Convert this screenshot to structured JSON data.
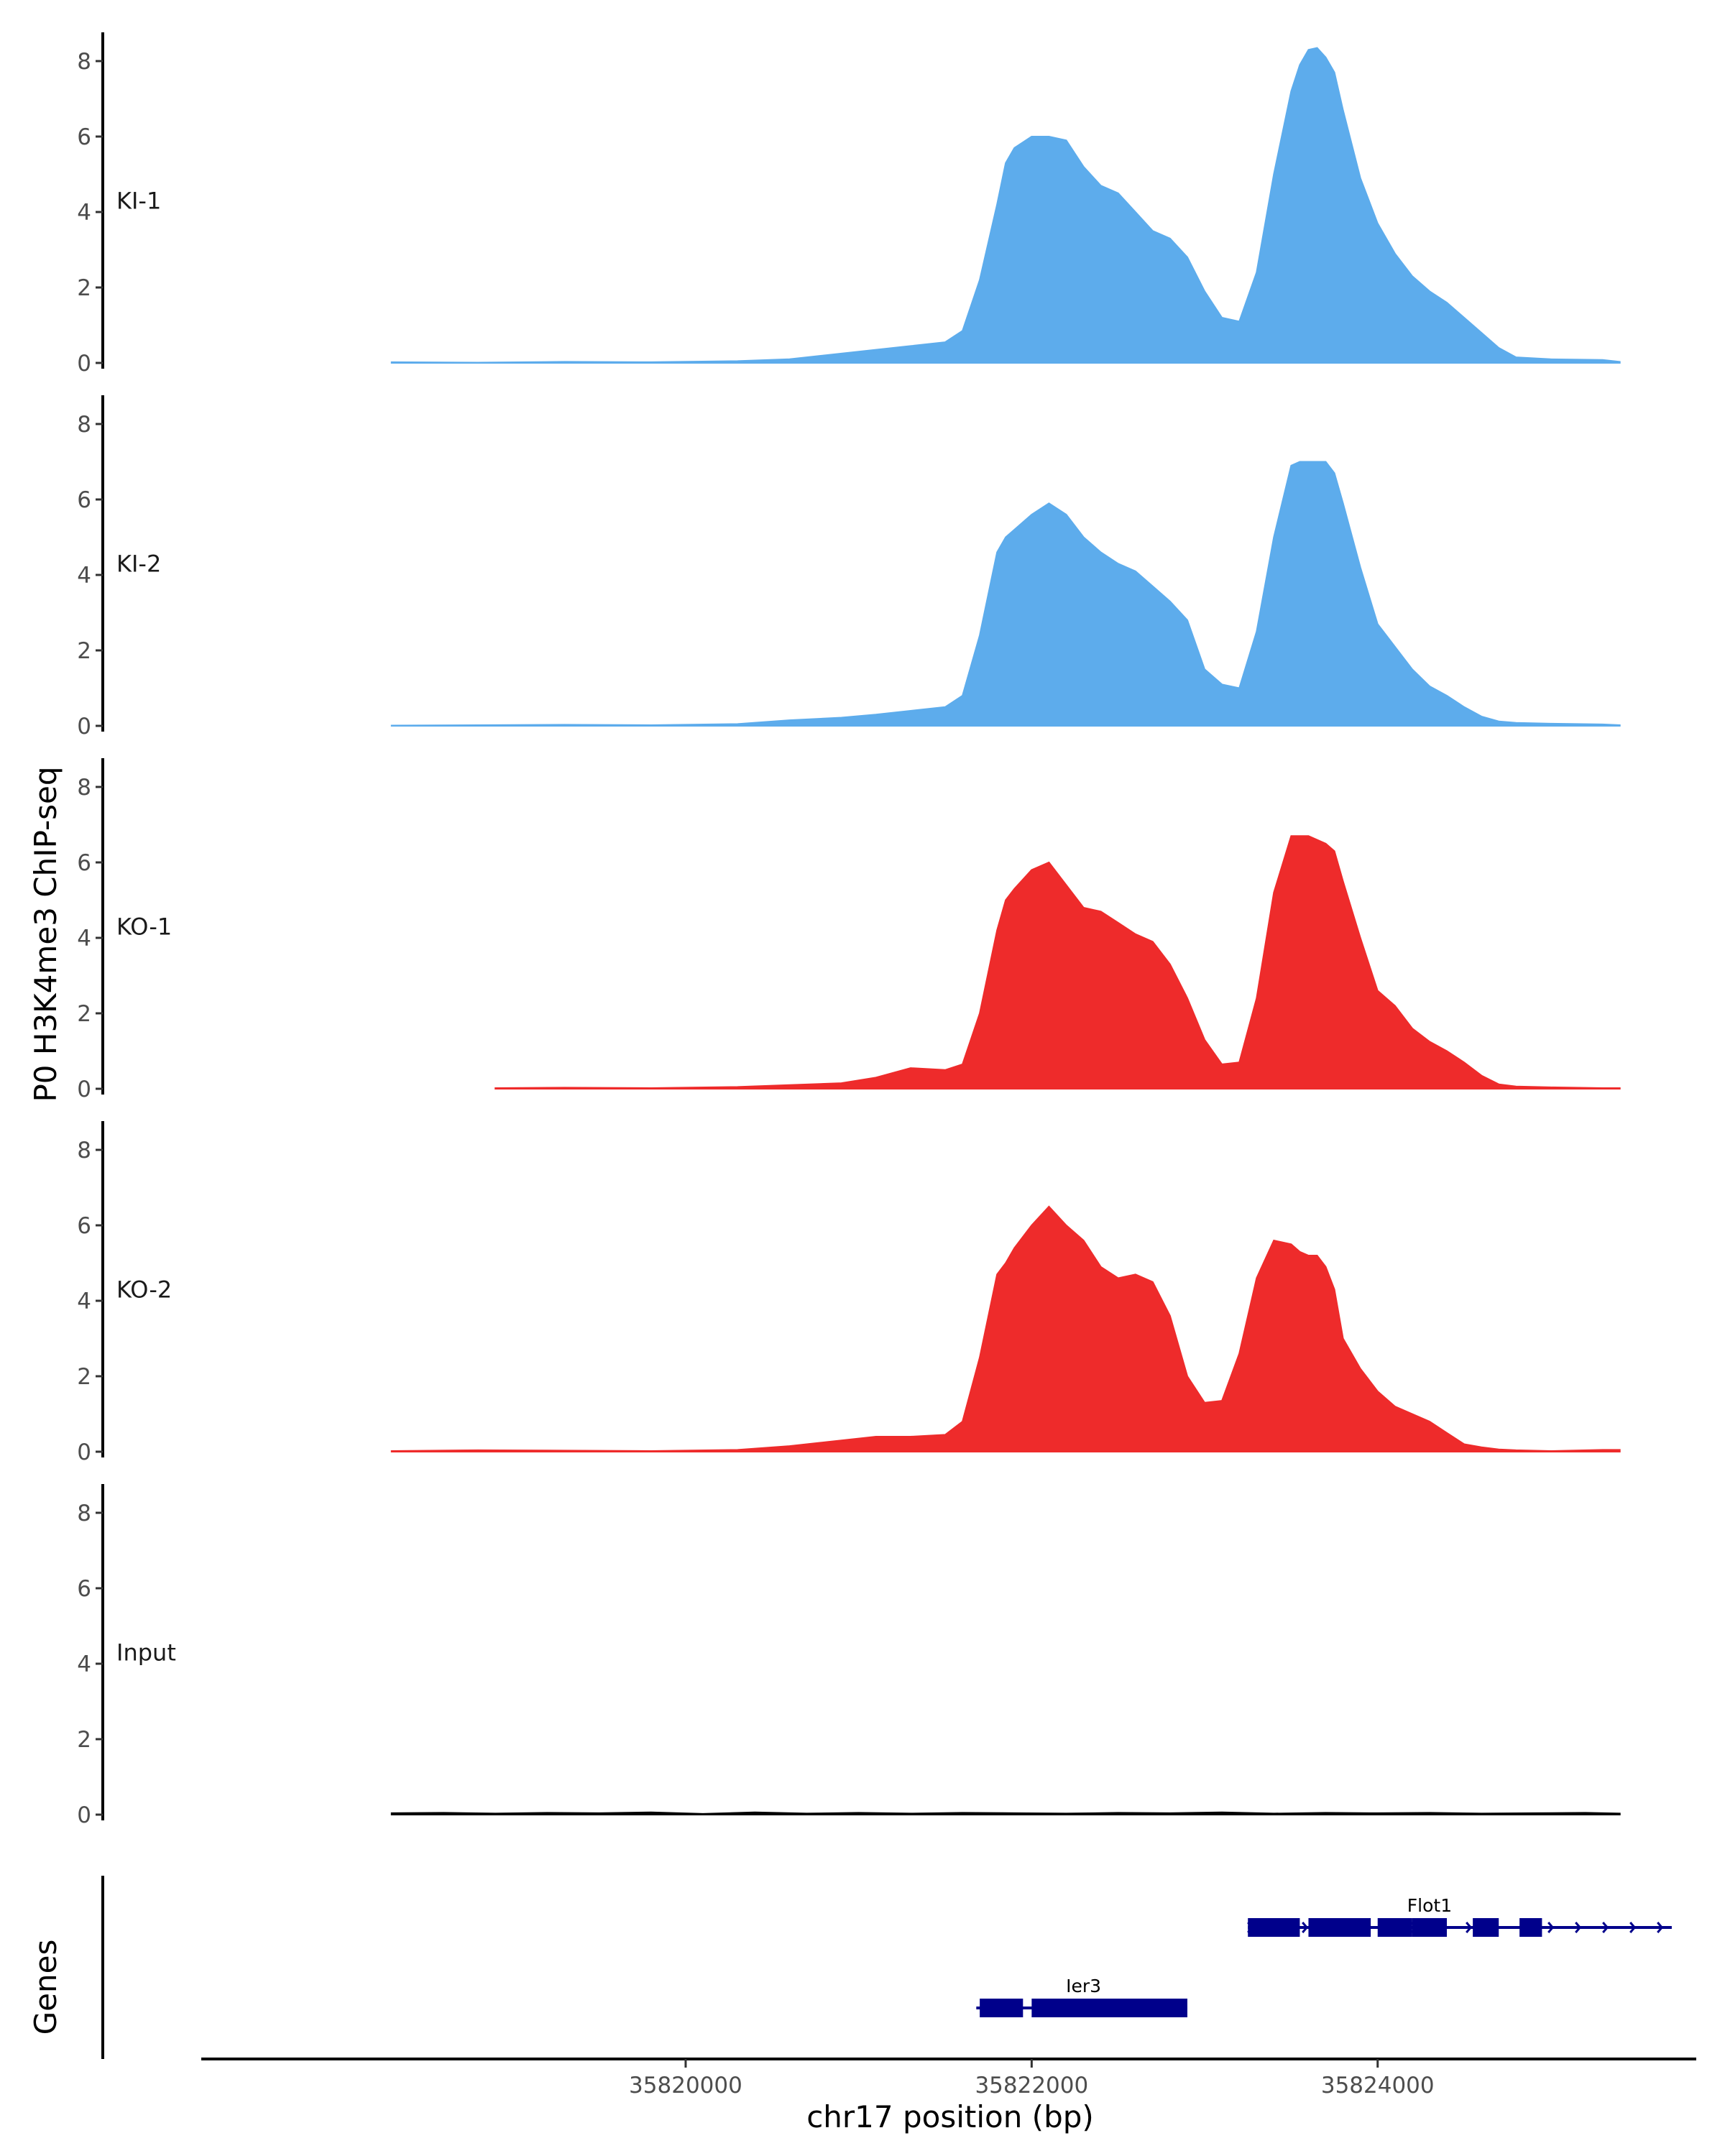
{
  "chart_data": {
    "type": "area",
    "title": "",
    "ylabel": "P0 H3K4me3 ChIP-seq",
    "xlabel": "chr17 position (bp)",
    "xlim": [
      35817200,
      35825800
    ],
    "ylim": [
      0,
      8.8
    ],
    "y_ticks": [
      0,
      2,
      4,
      6,
      8
    ],
    "x_ticks": [
      35820000,
      35822000,
      35824000
    ],
    "x_tick_labels": [
      "35820000",
      "35822000",
      "35824000"
    ],
    "tracks": [
      {
        "name": "KI-1",
        "color": "#5DACEC",
        "stroke": "#5DACEC",
        "x": [
          35818300,
          35818800,
          35819300,
          35819800,
          35820300,
          35820600,
          35820900,
          35821100,
          35821300,
          35821500,
          35821600,
          35821700,
          35821800,
          35821850,
          35821900,
          35822000,
          35822100,
          35822200,
          35822300,
          35822400,
          35822500,
          35822600,
          35822700,
          35822800,
          35822900,
          35823000,
          35823100,
          35823200,
          35823300,
          35823400,
          35823500,
          35823550,
          35823600,
          35823650,
          35823700,
          35823750,
          35823800,
          35823900,
          35824000,
          35824100,
          35824200,
          35824300,
          35824400,
          35824500,
          35824600,
          35824700,
          35824800,
          35825000,
          35825300,
          35825400
        ],
        "y": [
          0.02,
          0.01,
          0.03,
          0.02,
          0.05,
          0.1,
          0.25,
          0.35,
          0.45,
          0.55,
          0.85,
          2.2,
          4.2,
          5.3,
          5.7,
          6.0,
          6.0,
          5.9,
          5.2,
          4.7,
          4.5,
          4.0,
          3.5,
          3.3,
          2.8,
          1.9,
          1.2,
          1.1,
          2.4,
          5.0,
          7.2,
          7.9,
          8.3,
          8.35,
          8.1,
          7.7,
          6.7,
          4.9,
          3.7,
          2.9,
          2.3,
          1.9,
          1.6,
          1.2,
          0.8,
          0.4,
          0.15,
          0.1,
          0.08,
          0.03
        ]
      },
      {
        "name": "KI-2",
        "color": "#5DACEC",
        "stroke": "#5DACEC",
        "x": [
          35818300,
          35818800,
          35819300,
          35819800,
          35820300,
          35820600,
          35820900,
          35821100,
          35821300,
          35821500,
          35821600,
          35821700,
          35821800,
          35821850,
          35821900,
          35822000,
          35822100,
          35822200,
          35822300,
          35822400,
          35822500,
          35822600,
          35822700,
          35822800,
          35822900,
          35823000,
          35823100,
          35823200,
          35823300,
          35823400,
          35823500,
          35823550,
          35823600,
          35823650,
          35823700,
          35823750,
          35823800,
          35823900,
          35824000,
          35824100,
          35824200,
          35824300,
          35824400,
          35824500,
          35824600,
          35824700,
          35824800,
          35825000,
          35825300,
          35825400
        ],
        "y": [
          0.01,
          0.02,
          0.03,
          0.02,
          0.05,
          0.15,
          0.22,
          0.3,
          0.4,
          0.5,
          0.8,
          2.4,
          4.6,
          5.0,
          5.2,
          5.6,
          5.9,
          5.6,
          5.0,
          4.6,
          4.3,
          4.1,
          3.7,
          3.3,
          2.8,
          1.5,
          1.1,
          1.0,
          2.5,
          5.0,
          6.9,
          7.0,
          7.0,
          7.0,
          7.0,
          6.7,
          5.9,
          4.2,
          2.7,
          2.1,
          1.5,
          1.05,
          0.8,
          0.5,
          0.25,
          0.12,
          0.08,
          0.06,
          0.04,
          0.02
        ]
      },
      {
        "name": "KO-1",
        "color": "#EE2B2B",
        "stroke": "#EE2B2B",
        "x": [
          35818900,
          35819300,
          35819800,
          35820300,
          35820600,
          35820900,
          35821100,
          35821300,
          35821500,
          35821600,
          35821700,
          35821800,
          35821850,
          35821900,
          35822000,
          35822100,
          35822200,
          35822300,
          35822400,
          35822500,
          35822600,
          35822700,
          35822800,
          35822900,
          35823000,
          35823100,
          35823200,
          35823300,
          35823400,
          35823500,
          35823550,
          35823600,
          35823650,
          35823700,
          35823750,
          35823800,
          35823900,
          35824000,
          35824100,
          35824200,
          35824300,
          35824400,
          35824500,
          35824600,
          35824700,
          35824800,
          35825000,
          35825300,
          35825400
        ],
        "y": [
          0.02,
          0.03,
          0.02,
          0.05,
          0.1,
          0.15,
          0.3,
          0.55,
          0.5,
          0.65,
          2.0,
          4.2,
          5.0,
          5.3,
          5.8,
          6.0,
          5.4,
          4.8,
          4.7,
          4.4,
          4.1,
          3.9,
          3.3,
          2.4,
          1.3,
          0.65,
          0.7,
          2.4,
          5.2,
          6.7,
          6.7,
          6.7,
          6.6,
          6.5,
          6.3,
          5.5,
          4.0,
          2.6,
          2.2,
          1.6,
          1.25,
          1.0,
          0.7,
          0.35,
          0.12,
          0.06,
          0.04,
          0.02,
          0.02
        ]
      },
      {
        "name": "KO-2",
        "color": "#EE2B2B",
        "stroke": "#EE2B2B",
        "x": [
          35818300,
          35818800,
          35819300,
          35819800,
          35820300,
          35820600,
          35820900,
          35821100,
          35821300,
          35821500,
          35821600,
          35821700,
          35821800,
          35821850,
          35821900,
          35822000,
          35822100,
          35822200,
          35822300,
          35822400,
          35822500,
          35822600,
          35822700,
          35822800,
          35822900,
          35823000,
          35823100,
          35823200,
          35823300,
          35823400,
          35823500,
          35823550,
          35823600,
          35823650,
          35823700,
          35823750,
          35823800,
          35823900,
          35824000,
          35824100,
          35824200,
          35824300,
          35824400,
          35824500,
          35824600,
          35824700,
          35824800,
          35825000,
          35825300,
          35825400
        ],
        "y": [
          0.02,
          0.04,
          0.03,
          0.02,
          0.05,
          0.15,
          0.3,
          0.4,
          0.4,
          0.45,
          0.8,
          2.5,
          4.7,
          5.0,
          5.4,
          6.0,
          6.5,
          6.0,
          5.6,
          4.9,
          4.6,
          4.7,
          4.5,
          3.6,
          2.0,
          1.3,
          1.35,
          2.6,
          4.6,
          5.6,
          5.5,
          5.3,
          5.2,
          5.2,
          4.9,
          4.3,
          3.0,
          2.2,
          1.6,
          1.2,
          1.0,
          0.8,
          0.5,
          0.2,
          0.12,
          0.06,
          0.04,
          0.02,
          0.05,
          0.05
        ]
      },
      {
        "name": "Input",
        "color": "#000000",
        "stroke": "#000000",
        "x": [
          35818300,
          35818600,
          35818900,
          35819200,
          35819500,
          35819800,
          35820100,
          35820400,
          35820700,
          35821000,
          35821300,
          35821600,
          35821900,
          35822200,
          35822500,
          35822800,
          35823100,
          35823400,
          35823700,
          35824000,
          35824300,
          35824600,
          35824900,
          35825200,
          35825400
        ],
        "y": [
          0.04,
          0.05,
          0.03,
          0.05,
          0.04,
          0.06,
          0.02,
          0.06,
          0.03,
          0.05,
          0.03,
          0.05,
          0.04,
          0.03,
          0.05,
          0.04,
          0.06,
          0.03,
          0.05,
          0.04,
          0.05,
          0.03,
          0.04,
          0.05,
          0.03
        ]
      }
    ],
    "genes_label": "Genes",
    "genes": [
      {
        "name": "Flot1",
        "start": 35823250,
        "end": 35825700,
        "strand": "+",
        "row": 0,
        "color": "#00008B",
        "exons": [
          [
            35823250,
            35823550
          ],
          [
            35823600,
            35823960
          ],
          [
            35824000,
            35824200
          ],
          [
            35824200,
            35824400
          ],
          [
            35824550,
            35824700
          ],
          [
            35824820,
            35824950
          ]
        ]
      },
      {
        "name": "Ier3",
        "start": 35821680,
        "end": 35822900,
        "strand": "-",
        "row": 1,
        "color": "#00008B",
        "exons": [
          [
            35821700,
            35821950
          ],
          [
            35822000,
            35822900
          ]
        ]
      }
    ]
  }
}
